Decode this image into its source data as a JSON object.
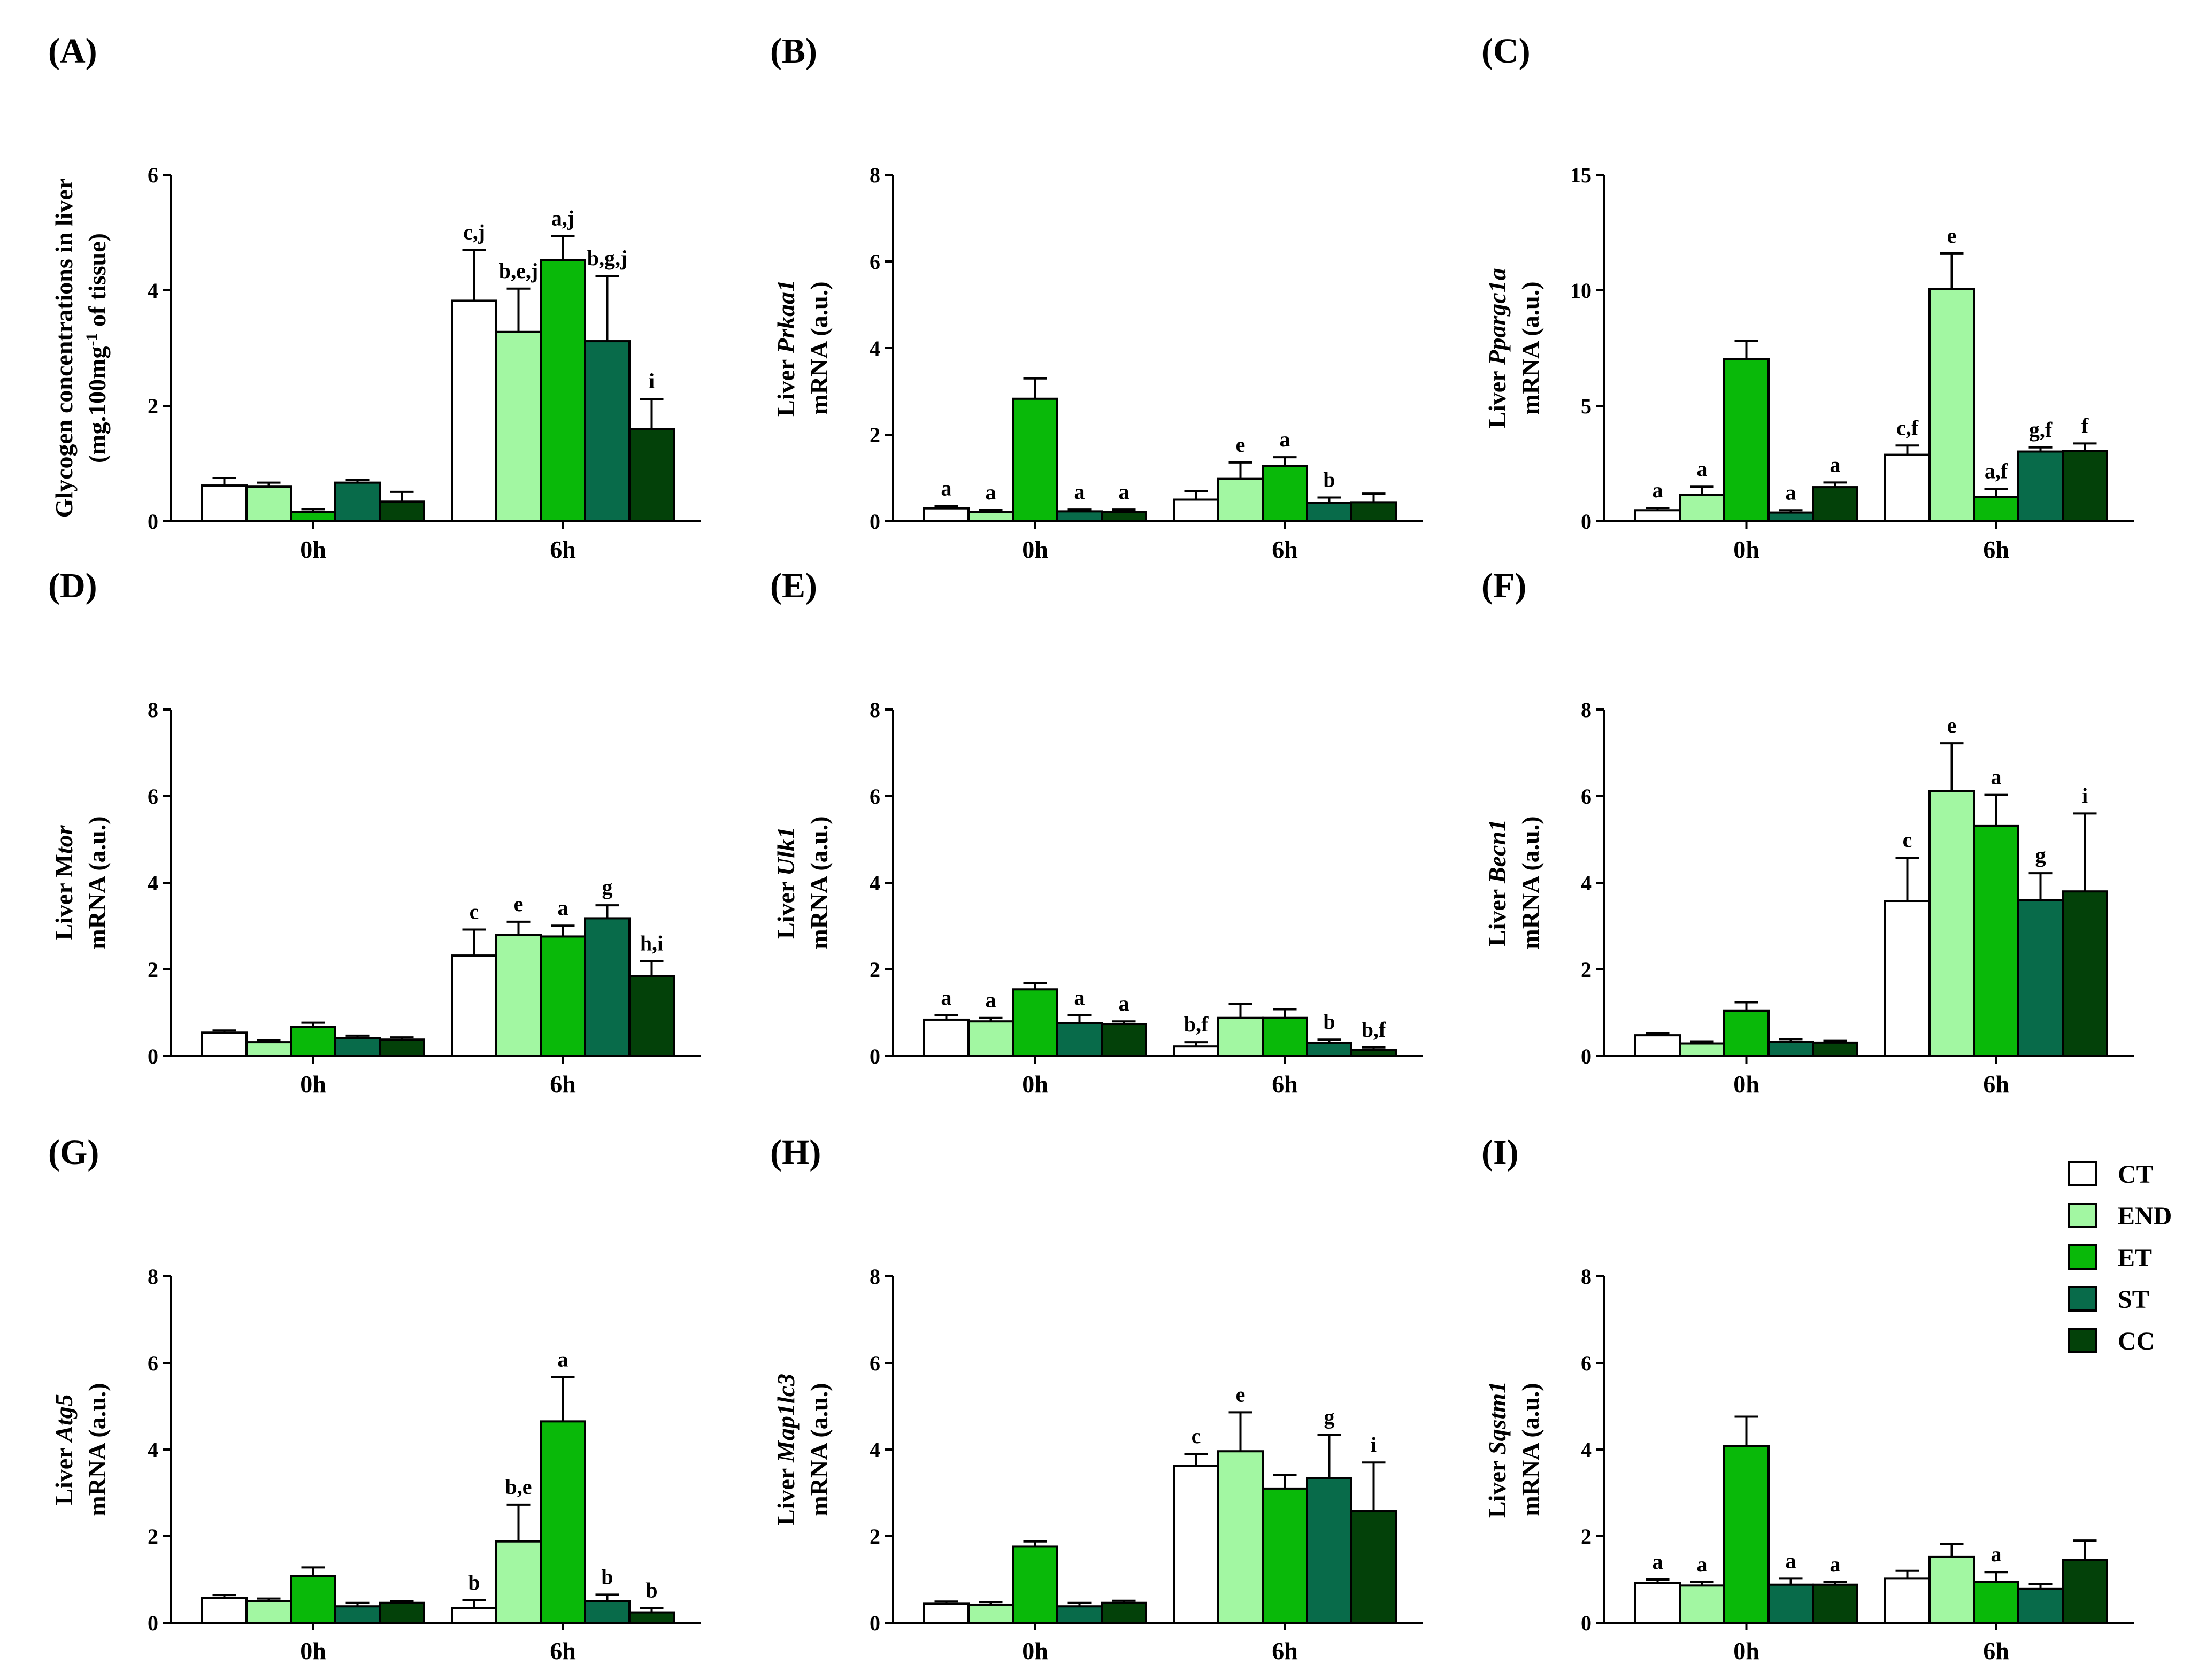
{
  "figure": {
    "series": [
      {
        "name": "CT",
        "color": "#ffffff"
      },
      {
        "name": "END",
        "color": "#a2f7a2"
      },
      {
        "name": "ET",
        "color": "#09b909"
      },
      {
        "name": "ST",
        "color": "#086b4a"
      },
      {
        "name": "CC",
        "color": "#034109"
      }
    ],
    "axis_color": "#000000"
  },
  "chart_data": [
    {
      "type": "bar",
      "panel": "(A)",
      "ylabel_lines": [
        [
          "Glycogen concentrations in liver"
        ],
        [
          "(mg.100mg",
          "-1",
          " of tissue)"
        ]
      ],
      "ylim": [
        0,
        6
      ],
      "yticks": [
        0,
        2,
        4,
        6
      ],
      "categories": [
        "0h",
        "6h"
      ],
      "series": [
        {
          "name": "CT",
          "values": [
            0.62,
            3.82
          ],
          "errors": [
            0.13,
            0.88
          ]
        },
        {
          "name": "END",
          "values": [
            0.6,
            3.28
          ],
          "errors": [
            0.07,
            0.75
          ]
        },
        {
          "name": "ET",
          "values": [
            0.16,
            4.52
          ],
          "errors": [
            0.05,
            0.42
          ]
        },
        {
          "name": "ST",
          "values": [
            0.67,
            3.12
          ],
          "errors": [
            0.05,
            1.13
          ]
        },
        {
          "name": "CC",
          "values": [
            0.34,
            1.6
          ],
          "errors": [
            0.17,
            0.52
          ]
        }
      ],
      "annotations": [
        [
          "",
          ""
        ],
        [
          "",
          ""
        ],
        [
          "",
          ""
        ],
        [
          "",
          ""
        ],
        [
          "",
          ""
        ]
      ],
      "annotations_by_category": {
        "0h": [
          "",
          "",
          "",
          "",
          ""
        ],
        "6h": [
          "c,j",
          "b,e,j",
          "a,j",
          "b,g,j",
          "i"
        ]
      }
    },
    {
      "type": "bar",
      "panel": "(B)",
      "ylabel_lines": [
        [
          "Liver ",
          "Prkaa1"
        ],
        [
          "mRNA (a.u.)"
        ]
      ],
      "ylim": [
        0,
        8
      ],
      "yticks": [
        0,
        2,
        4,
        6,
        8
      ],
      "categories": [
        "0h",
        "6h"
      ],
      "series": [
        {
          "name": "CT",
          "values": [
            0.3,
            0.5
          ],
          "errors": [
            0.05,
            0.2
          ]
        },
        {
          "name": "END",
          "values": [
            0.22,
            0.98
          ],
          "errors": [
            0.04,
            0.38
          ]
        },
        {
          "name": "ET",
          "values": [
            2.83,
            1.28
          ],
          "errors": [
            0.47,
            0.2
          ]
        },
        {
          "name": "ST",
          "values": [
            0.23,
            0.42
          ],
          "errors": [
            0.04,
            0.13
          ]
        },
        {
          "name": "CC",
          "values": [
            0.22,
            0.44
          ],
          "errors": [
            0.05,
            0.2
          ]
        }
      ],
      "annotations_by_category": {
        "0h": [
          "a",
          "a",
          "",
          "a",
          "a"
        ],
        "6h": [
          "",
          "e",
          "a",
          "b",
          ""
        ]
      }
    },
    {
      "type": "bar",
      "panel": "(C)",
      "ylabel_lines": [
        [
          "Liver ",
          "Ppargc1a"
        ],
        [
          "mRNA (a.u.)"
        ]
      ],
      "ylim": [
        0,
        15
      ],
      "yticks": [
        0,
        5,
        10,
        15
      ],
      "categories": [
        "0h",
        "6h"
      ],
      "series": [
        {
          "name": "CT",
          "values": [
            0.48,
            2.88
          ],
          "errors": [
            0.1,
            0.4
          ]
        },
        {
          "name": "END",
          "values": [
            1.15,
            10.05
          ],
          "errors": [
            0.35,
            1.55
          ]
        },
        {
          "name": "ET",
          "values": [
            7.02,
            1.05
          ],
          "errors": [
            0.78,
            0.35
          ]
        },
        {
          "name": "ST",
          "values": [
            0.38,
            3.02
          ],
          "errors": [
            0.1,
            0.18
          ]
        },
        {
          "name": "CC",
          "values": [
            1.48,
            3.05
          ],
          "errors": [
            0.2,
            0.32
          ]
        }
      ],
      "annotations_by_category": {
        "0h": [
          "a",
          "a",
          "",
          "a",
          "a"
        ],
        "6h": [
          "c,f",
          "e",
          "a,f",
          "g,f",
          "f"
        ]
      }
    },
    {
      "type": "bar",
      "panel": "(D)",
      "ylabel_lines": [
        [
          "Liver M",
          "tor"
        ],
        [
          "mRNA (a.u.)"
        ]
      ],
      "ylim": [
        0,
        8
      ],
      "yticks": [
        0,
        2,
        4,
        6,
        8
      ],
      "categories": [
        "0h",
        "6h"
      ],
      "series": [
        {
          "name": "CT",
          "values": [
            0.54,
            2.32
          ],
          "errors": [
            0.05,
            0.6
          ]
        },
        {
          "name": "END",
          "values": [
            0.32,
            2.8
          ],
          "errors": [
            0.04,
            0.3
          ]
        },
        {
          "name": "ET",
          "values": [
            0.67,
            2.76
          ],
          "errors": [
            0.1,
            0.25
          ]
        },
        {
          "name": "ST",
          "values": [
            0.41,
            3.18
          ],
          "errors": [
            0.06,
            0.3
          ]
        },
        {
          "name": "CC",
          "values": [
            0.38,
            1.84
          ],
          "errors": [
            0.05,
            0.35
          ]
        }
      ],
      "annotations_by_category": {
        "0h": [
          "",
          "",
          "",
          "",
          ""
        ],
        "6h": [
          "c",
          "e",
          "a",
          "g",
          "h,i"
        ]
      }
    },
    {
      "type": "bar",
      "panel": "(E)",
      "ylabel_lines": [
        [
          "Liver ",
          "Ulk1"
        ],
        [
          "mRNA (a.u.)"
        ]
      ],
      "ylim": [
        0,
        8
      ],
      "yticks": [
        0,
        2,
        4,
        6,
        8
      ],
      "categories": [
        "0h",
        "6h"
      ],
      "series": [
        {
          "name": "CT",
          "values": [
            0.84,
            0.22
          ],
          "errors": [
            0.1,
            0.1
          ]
        },
        {
          "name": "END",
          "values": [
            0.8,
            0.88
          ],
          "errors": [
            0.08,
            0.32
          ]
        },
        {
          "name": "ET",
          "values": [
            1.54,
            0.88
          ],
          "errors": [
            0.15,
            0.2
          ]
        },
        {
          "name": "ST",
          "values": [
            0.76,
            0.3
          ],
          "errors": [
            0.18,
            0.08
          ]
        },
        {
          "name": "CC",
          "values": [
            0.74,
            0.14
          ],
          "errors": [
            0.06,
            0.06
          ]
        }
      ],
      "annotations_by_category": {
        "0h": [
          "a",
          "a",
          "",
          "a",
          "a"
        ],
        "6h": [
          "b,f",
          "",
          "",
          "b",
          "b,f"
        ]
      }
    },
    {
      "type": "bar",
      "panel": "(F)",
      "ylabel_lines": [
        [
          "Liver ",
          "Becn1"
        ],
        [
          "mRNA (a.u.)"
        ]
      ],
      "ylim": [
        0,
        8
      ],
      "yticks": [
        0,
        2,
        4,
        6,
        8
      ],
      "categories": [
        "0h",
        "6h"
      ],
      "series": [
        {
          "name": "CT",
          "values": [
            0.48,
            3.58
          ],
          "errors": [
            0.04,
            1.0
          ]
        },
        {
          "name": "END",
          "values": [
            0.29,
            6.12
          ],
          "errors": [
            0.05,
            1.1
          ]
        },
        {
          "name": "ET",
          "values": [
            1.04,
            5.31
          ],
          "errors": [
            0.2,
            0.72
          ]
        },
        {
          "name": "ST",
          "values": [
            0.33,
            3.6
          ],
          "errors": [
            0.06,
            0.62
          ]
        },
        {
          "name": "CC",
          "values": [
            0.31,
            3.8
          ],
          "errors": [
            0.04,
            1.8
          ]
        }
      ],
      "annotations_by_category": {
        "0h": [
          "",
          "",
          "",
          "",
          ""
        ],
        "6h": [
          "c",
          "e",
          "a",
          "g",
          "i"
        ]
      }
    },
    {
      "type": "bar",
      "panel": "(G)",
      "ylabel_lines": [
        [
          "Liver ",
          "Atg5"
        ],
        [
          "mRNA (a.u.)"
        ]
      ],
      "ylim": [
        0,
        8
      ],
      "yticks": [
        0,
        2,
        4,
        6,
        8
      ],
      "categories": [
        "0h",
        "6h"
      ],
      "series": [
        {
          "name": "CT",
          "values": [
            0.58,
            0.34
          ],
          "errors": [
            0.06,
            0.18
          ]
        },
        {
          "name": "END",
          "values": [
            0.5,
            1.88
          ],
          "errors": [
            0.06,
            0.85
          ]
        },
        {
          "name": "ET",
          "values": [
            1.08,
            4.65
          ],
          "errors": [
            0.2,
            1.02
          ]
        },
        {
          "name": "ST",
          "values": [
            0.38,
            0.5
          ],
          "errors": [
            0.08,
            0.15
          ]
        },
        {
          "name": "CC",
          "values": [
            0.46,
            0.24
          ],
          "errors": [
            0.04,
            0.1
          ]
        }
      ],
      "annotations_by_category": {
        "0h": [
          "",
          "",
          "",
          "",
          ""
        ],
        "6h": [
          "b",
          "b,e",
          "a",
          "b",
          "b"
        ]
      }
    },
    {
      "type": "bar",
      "panel": "(H)",
      "ylabel_lines": [
        [
          "Liver ",
          "Map1lc3"
        ],
        [
          "mRNA (a.u.)"
        ]
      ],
      "ylim": [
        0,
        8
      ],
      "yticks": [
        0,
        2,
        4,
        6,
        8
      ],
      "categories": [
        "0h",
        "6h"
      ],
      "series": [
        {
          "name": "CT",
          "values": [
            0.44,
            3.62
          ],
          "errors": [
            0.05,
            0.28
          ]
        },
        {
          "name": "END",
          "values": [
            0.42,
            3.96
          ],
          "errors": [
            0.06,
            0.9
          ]
        },
        {
          "name": "ET",
          "values": [
            1.76,
            3.1
          ],
          "errors": [
            0.12,
            0.32
          ]
        },
        {
          "name": "ST",
          "values": [
            0.38,
            3.34
          ],
          "errors": [
            0.08,
            1.0
          ]
        },
        {
          "name": "CC",
          "values": [
            0.46,
            2.58
          ],
          "errors": [
            0.05,
            1.12
          ]
        }
      ],
      "annotations_by_category": {
        "0h": [
          "",
          "",
          "",
          "",
          ""
        ],
        "6h": [
          "c",
          "e",
          "",
          "g",
          "i"
        ]
      }
    },
    {
      "type": "bar",
      "panel": "(I)",
      "ylabel_lines": [
        [
          "Liver ",
          "Sqstm1"
        ],
        [
          "mRNA (a.u.)"
        ]
      ],
      "ylim": [
        0,
        8
      ],
      "yticks": [
        0,
        2,
        4,
        6,
        8
      ],
      "categories": [
        "0h",
        "6h"
      ],
      "series": [
        {
          "name": "CT",
          "values": [
            0.92,
            1.02
          ],
          "errors": [
            0.08,
            0.18
          ]
        },
        {
          "name": "END",
          "values": [
            0.86,
            1.52
          ],
          "errors": [
            0.08,
            0.3
          ]
        },
        {
          "name": "ET",
          "values": [
            4.08,
            0.95
          ],
          "errors": [
            0.68,
            0.22
          ]
        },
        {
          "name": "ST",
          "values": [
            0.88,
            0.78
          ],
          "errors": [
            0.14,
            0.12
          ]
        },
        {
          "name": "CC",
          "values": [
            0.88,
            1.45
          ],
          "errors": [
            0.06,
            0.45
          ]
        }
      ],
      "annotations_by_category": {
        "0h": [
          "a",
          "a",
          "",
          "a",
          "a"
        ],
        "6h": [
          "",
          "",
          "a",
          "",
          ""
        ]
      }
    }
  ]
}
